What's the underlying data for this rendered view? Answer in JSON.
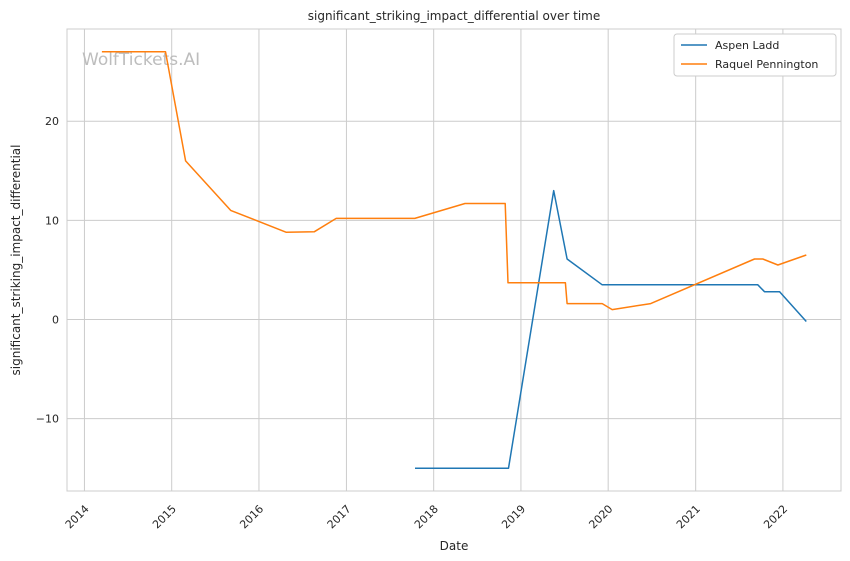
{
  "watermark": "WolfTickets.AI",
  "chart_data": {
    "type": "line",
    "title": "significant_striking_impact_differential over time",
    "xlabel": "Date",
    "ylabel": "significant_striking_impact_differential",
    "xlim": [
      "2013-10-20",
      "2022-09-01"
    ],
    "ylim": [
      -17.3,
      29.3
    ],
    "x_ticks": [
      "2014-01-01",
      "2015-01-01",
      "2016-01-01",
      "2017-01-01",
      "2018-01-01",
      "2019-01-01",
      "2020-01-01",
      "2021-01-01",
      "2022-01-01"
    ],
    "x_tick_labels": [
      "2014",
      "2015",
      "2016",
      "2017",
      "2018",
      "2019",
      "2020",
      "2021",
      "2022"
    ],
    "y_ticks": [
      -10,
      0,
      10,
      20
    ],
    "y_tick_labels": [
      "−10",
      "0",
      "10",
      "20"
    ],
    "grid": true,
    "legend_position": "top-right",
    "series": [
      {
        "name": "Aspen Ladd",
        "color": "#1f77b4",
        "points": [
          [
            "2017-10-15",
            -15.0
          ],
          [
            "2018-11-10",
            -15.0
          ],
          [
            "2019-05-18",
            13.0
          ],
          [
            "2019-07-13",
            6.1
          ],
          [
            "2019-12-07",
            3.5
          ],
          [
            "2021-09-18",
            3.5
          ],
          [
            "2021-10-16",
            2.8
          ],
          [
            "2021-12-18",
            2.8
          ],
          [
            "2022-04-09",
            -0.2
          ]
        ]
      },
      {
        "name": "Raquel Pennington",
        "color": "#ff7f0e",
        "points": [
          [
            "2014-03-15",
            27.0
          ],
          [
            "2014-12-06",
            27.0
          ],
          [
            "2015-02-28",
            16.0
          ],
          [
            "2015-09-05",
            11.0
          ],
          [
            "2016-04-23",
            8.8
          ],
          [
            "2016-08-20",
            8.85
          ],
          [
            "2016-11-19",
            10.2
          ],
          [
            "2017-10-14",
            10.2
          ],
          [
            "2018-05-12",
            11.7
          ],
          [
            "2018-10-27",
            11.7
          ],
          [
            "2018-11-08",
            3.7
          ],
          [
            "2019-07-06",
            3.7
          ],
          [
            "2019-07-13",
            1.6
          ],
          [
            "2019-12-07",
            1.6
          ],
          [
            "2020-01-18",
            1.0
          ],
          [
            "2020-06-27",
            1.6
          ],
          [
            "2021-09-04",
            6.1
          ],
          [
            "2021-10-09",
            6.1
          ],
          [
            "2021-12-11",
            5.5
          ],
          [
            "2022-04-09",
            6.5
          ]
        ]
      }
    ]
  }
}
